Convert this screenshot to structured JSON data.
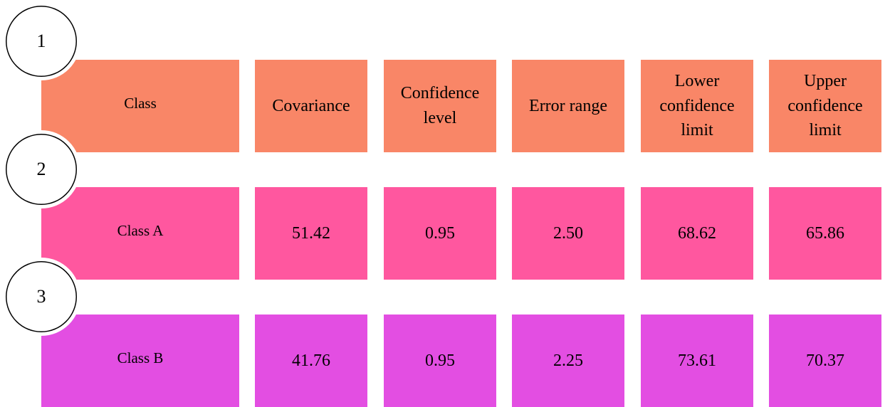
{
  "steps": [
    "1",
    "2",
    "3"
  ],
  "header": {
    "class": "Class",
    "covariance": "Covariance",
    "confidence_level": "Confidence level",
    "error_range": "Error range",
    "lower_limit": "Lower confidence limit",
    "upper_limit": "Upper confidence limit"
  },
  "rows": [
    {
      "class": "Class A",
      "covariance": "51.42",
      "confidence_level": "0.95",
      "error_range": "2.50",
      "lower_limit": "68.62",
      "upper_limit": "65.86"
    },
    {
      "class": "Class B",
      "covariance": "41.76",
      "confidence_level": "0.95",
      "error_range": "2.25",
      "lower_limit": "73.61",
      "upper_limit": "70.37"
    }
  ],
  "colors": {
    "header_fill": "#f98667",
    "class_a_fill": "#ff579f",
    "class_b_fill": "#e34ee2"
  }
}
